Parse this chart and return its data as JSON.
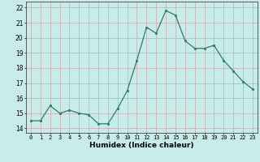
{
  "x": [
    0,
    1,
    2,
    3,
    4,
    5,
    6,
    7,
    8,
    9,
    10,
    11,
    12,
    13,
    14,
    15,
    16,
    17,
    18,
    19,
    20,
    21,
    22,
    23
  ],
  "y": [
    14.5,
    14.5,
    15.5,
    15.0,
    15.2,
    15.0,
    14.9,
    14.3,
    14.3,
    15.3,
    16.5,
    18.5,
    20.7,
    20.3,
    21.8,
    21.5,
    19.8,
    19.3,
    19.3,
    19.5,
    18.5,
    17.8,
    17.1,
    16.6
  ],
  "xlabel": "Humidex (Indice chaleur)",
  "xlim": [
    -0.5,
    23.5
  ],
  "ylim": [
    13.7,
    22.4
  ],
  "yticks": [
    14,
    15,
    16,
    17,
    18,
    19,
    20,
    21,
    22
  ],
  "xticks": [
    0,
    1,
    2,
    3,
    4,
    5,
    6,
    7,
    8,
    9,
    10,
    11,
    12,
    13,
    14,
    15,
    16,
    17,
    18,
    19,
    20,
    21,
    22,
    23
  ],
  "line_color": "#2a7d6b",
  "marker_color": "#2a7d6b",
  "bg_color": "#c8ecea",
  "grid_color": "#c8a8a8",
  "fig_bg": "#c8ecea"
}
